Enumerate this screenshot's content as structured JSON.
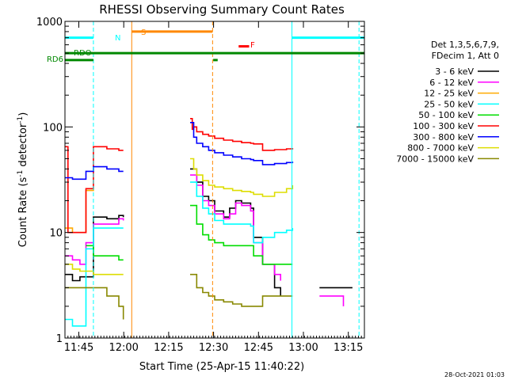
{
  "chart_data": {
    "type": "line",
    "title": "RHESSI Observing Summary Count Rates",
    "xlabel": "Start Time (25-Apr-15 11:40:22)",
    "ylabel_main": "Count Rate (s",
    "ylabel_sup": "-1",
    "ylabel_mid": " detector",
    "ylabel_sup2": "-1",
    "ylabel_end": ")",
    "timestamp": "28-Oct-2021 01:03",
    "x_range_minutes": [
      0,
      100
    ],
    "x_ticks": [
      {
        "label": "11:45",
        "minute": 4.63
      },
      {
        "label": "12:00",
        "minute": 19.63
      },
      {
        "label": "12:15",
        "minute": 34.63
      },
      {
        "label": "12:30",
        "minute": 49.63
      },
      {
        "label": "12:45",
        "minute": 64.63
      },
      {
        "label": "13:00",
        "minute": 79.63
      },
      {
        "label": "13:15",
        "minute": 94.63
      }
    ],
    "y_scale": "log",
    "y_range": [
      1,
      1000
    ],
    "y_ticks": [
      {
        "label": "1",
        "value": 1
      },
      {
        "label": "10",
        "value": 10
      },
      {
        "label": "100",
        "value": 100
      },
      {
        "label": "1000",
        "value": 1000
      }
    ],
    "legend_header": [
      "Det 1,3,5,6,7,9,",
      "FDecim 1, Att 0"
    ],
    "series": [
      {
        "name": "3 - 6 keV",
        "color": "#000000",
        "segments": [
          [
            [
              0,
              4
            ],
            [
              2.5,
              4
            ],
            [
              2.5,
              3.5
            ],
            [
              5,
              3.8
            ],
            [
              9.5,
              4.2
            ],
            [
              9.5,
              14
            ],
            [
              14,
              13.5
            ],
            [
              18,
              13
            ],
            [
              18,
              14.5
            ],
            [
              19.5,
              14
            ]
          ],
          [
            [
              41.8,
              40
            ],
            [
              44,
              30
            ],
            [
              46,
              22
            ],
            [
              48,
              20
            ],
            [
              50,
              16
            ],
            [
              53,
              14
            ],
            [
              55,
              17
            ],
            [
              57,
              20
            ],
            [
              59,
              19
            ],
            [
              62,
              17
            ],
            [
              63,
              9
            ],
            [
              66,
              5
            ],
            [
              70,
              3
            ],
            [
              72,
              2.5
            ]
          ],
          [
            [
              85,
              3
            ],
            [
              90,
              3
            ],
            [
              93,
              3
            ],
            [
              96,
              3
            ]
          ]
        ]
      },
      {
        "name": "6 - 12 keV",
        "color": "#ff00ff",
        "segments": [
          [
            [
              0,
              6
            ],
            [
              2.5,
              5.5
            ],
            [
              5,
              5
            ],
            [
              7,
              5
            ],
            [
              7,
              8
            ],
            [
              9.5,
              8
            ],
            [
              9.5,
              12
            ],
            [
              14,
              12
            ],
            [
              18,
              12
            ],
            [
              18,
              13.5
            ],
            [
              19.5,
              13
            ]
          ],
          [
            [
              41.8,
              35
            ],
            [
              44,
              28
            ],
            [
              46,
              20
            ],
            [
              48,
              18
            ],
            [
              50,
              15
            ],
            [
              53,
              13.5
            ],
            [
              55,
              15
            ],
            [
              57,
              19
            ],
            [
              59,
              18
            ],
            [
              62,
              16
            ],
            [
              63,
              8
            ],
            [
              66,
              5
            ],
            [
              70,
              4
            ],
            [
              72,
              3.5
            ]
          ],
          [
            [
              85,
              2.5
            ],
            [
              90,
              2.5
            ],
            [
              93,
              2
            ]
          ]
        ]
      },
      {
        "name": "12 - 25 keV",
        "color": "#ffaa00",
        "segments": [
          [
            [
              0,
              11
            ],
            [
              2.5,
              11
            ],
            [
              2.5,
              10
            ],
            [
              5,
              10
            ],
            [
              7,
              10
            ],
            [
              7,
              25
            ],
            [
              9.5,
              26
            ]
          ]
        ]
      },
      {
        "name": "25 - 50 keV",
        "color": "#00ffff",
        "segments": [
          [
            [
              0,
              1.5
            ],
            [
              2.5,
              1.3
            ],
            [
              5,
              1.3
            ],
            [
              7,
              1.3
            ],
            [
              7,
              7
            ],
            [
              9.5,
              6.5
            ],
            [
              9.5,
              11
            ],
            [
              14,
              11
            ],
            [
              18,
              11
            ],
            [
              19.5,
              11
            ]
          ],
          [
            [
              41.8,
              30
            ],
            [
              44,
              22
            ],
            [
              46,
              17
            ],
            [
              48,
              15
            ],
            [
              50,
              13
            ],
            [
              53,
              12
            ],
            [
              55,
              12
            ],
            [
              57,
              12
            ],
            [
              59,
              12
            ],
            [
              62,
              11.5
            ],
            [
              63,
              8
            ],
            [
              66,
              9
            ],
            [
              70,
              10
            ],
            [
              74,
              10.5
            ],
            [
              76,
              11
            ]
          ]
        ]
      },
      {
        "name": "50 - 100 keV",
        "color": "#00dd00",
        "segments": [
          [
            [
              7,
              7.5
            ],
            [
              9.5,
              7
            ],
            [
              9.5,
              6
            ],
            [
              14,
              6
            ],
            [
              18,
              5.5
            ],
            [
              19.5,
              5.5
            ]
          ],
          [
            [
              41.8,
              18
            ],
            [
              44,
              12
            ],
            [
              46,
              9.5
            ],
            [
              48,
              8.5
            ],
            [
              50,
              8
            ],
            [
              53,
              7.5
            ],
            [
              56,
              7.5
            ],
            [
              59,
              7.5
            ],
            [
              62,
              7.5
            ],
            [
              63,
              6
            ],
            [
              66,
              5
            ],
            [
              70,
              5
            ],
            [
              74,
              5
            ],
            [
              76,
              5
            ]
          ]
        ]
      },
      {
        "name": "100 - 300 keV",
        "color": "#ff0000",
        "segments": [
          [
            [
              0,
              65
            ],
            [
              1,
              65
            ],
            [
              1,
              10
            ],
            [
              2.5,
              10
            ],
            [
              5,
              10
            ],
            [
              7,
              10
            ],
            [
              7,
              26
            ],
            [
              9.5,
              26
            ],
            [
              9.5,
              65
            ],
            [
              14,
              62
            ],
            [
              18,
              60
            ],
            [
              19.5,
              60
            ]
          ],
          [
            [
              41.8,
              120
            ],
            [
              42.5,
              95
            ],
            [
              43,
              100
            ],
            [
              44,
              90
            ],
            [
              46,
              85
            ],
            [
              48,
              82
            ],
            [
              50,
              78
            ],
            [
              53,
              75
            ],
            [
              56,
              73
            ],
            [
              59,
              71
            ],
            [
              62,
              70
            ],
            [
              63,
              69
            ],
            [
              66,
              60
            ],
            [
              70,
              61
            ],
            [
              74,
              62
            ],
            [
              76,
              63
            ]
          ]
        ]
      },
      {
        "name": "300 - 800 keV",
        "color": "#0000ff",
        "segments": [
          [
            [
              0,
              33
            ],
            [
              2.5,
              32
            ],
            [
              5,
              32
            ],
            [
              7,
              32
            ],
            [
              7,
              38
            ],
            [
              9.5,
              39
            ],
            [
              9.5,
              42
            ],
            [
              14,
              40
            ],
            [
              18,
              38
            ],
            [
              19.5,
              38
            ]
          ],
          [
            [
              41.8,
              110
            ],
            [
              43,
              80
            ],
            [
              44,
              70
            ],
            [
              46,
              65
            ],
            [
              48,
              60
            ],
            [
              50,
              57
            ],
            [
              53,
              54
            ],
            [
              56,
              52
            ],
            [
              59,
              50
            ],
            [
              62,
              49
            ],
            [
              63,
              48
            ],
            [
              66,
              44
            ],
            [
              70,
              45
            ],
            [
              74,
              46
            ],
            [
              76,
              47
            ]
          ]
        ]
      },
      {
        "name": "800 - 7000 keV",
        "color": "#dddd00",
        "segments": [
          [
            [
              0,
              5
            ],
            [
              2.5,
              4.5
            ],
            [
              5,
              4.3
            ],
            [
              7,
              4.3
            ],
            [
              9.5,
              4
            ],
            [
              14,
              4
            ],
            [
              18,
              4
            ],
            [
              19.5,
              4
            ]
          ],
          [
            [
              41.8,
              50
            ],
            [
              43,
              40
            ],
            [
              44,
              35
            ],
            [
              46,
              31
            ],
            [
              48,
              28
            ],
            [
              50,
              27
            ],
            [
              53,
              26
            ],
            [
              56,
              25
            ],
            [
              59,
              24.5
            ],
            [
              62,
              24
            ],
            [
              63,
              23
            ],
            [
              66,
              22
            ],
            [
              70,
              24
            ],
            [
              74,
              26
            ],
            [
              76,
              28
            ]
          ]
        ]
      },
      {
        "name": "7000 - 15000 keV",
        "color": "#888800",
        "segments": [
          [
            [
              0,
              3
            ],
            [
              2.5,
              3
            ],
            [
              5,
              3
            ],
            [
              7,
              3
            ],
            [
              9.5,
              3
            ],
            [
              14,
              2.5
            ],
            [
              18,
              2
            ],
            [
              19.5,
              1.5
            ]
          ],
          [
            [
              41.8,
              4
            ],
            [
              44,
              3
            ],
            [
              46,
              2.7
            ],
            [
              48,
              2.5
            ],
            [
              50,
              2.3
            ],
            [
              53,
              2.2
            ],
            [
              56,
              2.1
            ],
            [
              59,
              2
            ],
            [
              62,
              2
            ],
            [
              63,
              2
            ],
            [
              66,
              2.5
            ],
            [
              70,
              2.5
            ],
            [
              74,
              2.5
            ],
            [
              76,
              2.5
            ]
          ]
        ]
      }
    ]
  },
  "annotations": {
    "flags": [
      {
        "label": "N",
        "color": "#00ffff"
      },
      {
        "label": "S",
        "color": "#ff8800"
      },
      {
        "label": "F",
        "color": "#ff0000"
      },
      {
        "label": "RDO",
        "color": "#008800"
      },
      {
        "label": "RD6",
        "color": "#008800"
      }
    ],
    "flag_bars": [
      {
        "color": "#00ffff",
        "y_value": 700,
        "x_ranges_minutes": [
          [
            0,
            9.5
          ],
          [
            75.8,
            100
          ]
        ]
      },
      {
        "color": "#ff8800",
        "y_value": 800,
        "x_ranges_minutes": [
          [
            22.3,
            49.3
          ]
        ]
      },
      {
        "color": "#ff0000",
        "y_value": 580,
        "x_ranges_minutes": [
          [
            58,
            61.5
          ]
        ]
      },
      {
        "color": "#008800",
        "y_value": 500,
        "x_ranges_minutes": [
          [
            0,
            100
          ]
        ]
      },
      {
        "color": "#008800",
        "y_value": 430,
        "x_ranges_minutes": [
          [
            0,
            9.5
          ],
          [
            49.5,
            51
          ]
        ]
      }
    ],
    "vlines": [
      {
        "color": "#00ffff",
        "minute": 9.5,
        "dashed": true
      },
      {
        "color": "#ff8800",
        "minute": 22.3,
        "dashed": false
      },
      {
        "color": "#ff8800",
        "minute": 49.3,
        "dashed": true
      },
      {
        "color": "#00ffff",
        "minute": 75.8,
        "dashed": false
      },
      {
        "color": "#00ffff",
        "minute": 98.2,
        "dashed": true
      }
    ]
  }
}
